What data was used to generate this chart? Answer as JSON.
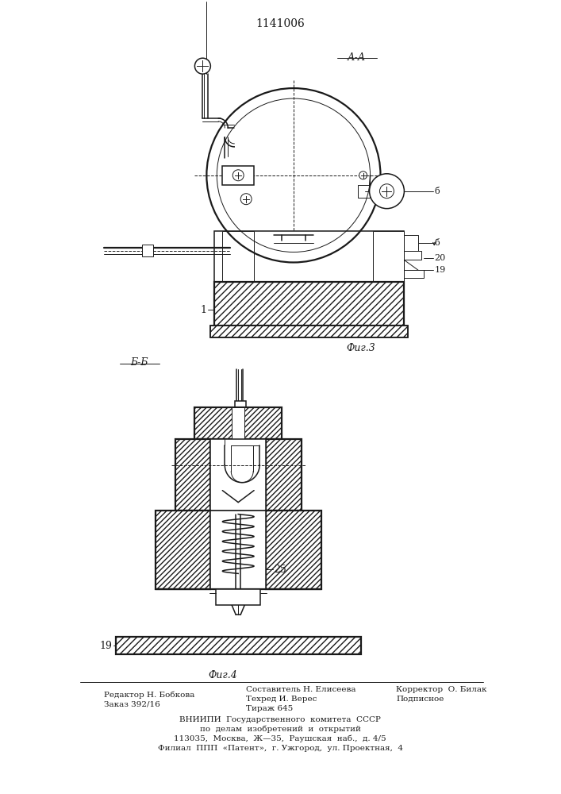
{
  "title": "1141006",
  "fig3_label": "А-А",
  "fig3_caption": "Фиг.3",
  "fig4_caption": "Фиг.4",
  "section_label": "Б-Б",
  "label_1": "1",
  "label_6a": "б",
  "label_6b": "б",
  "label_19a": "19",
  "label_19b": "19",
  "label_20": "20",
  "label_25": "25",
  "bg_color": "#ffffff",
  "line_color": "#1a1a1a",
  "fig_width": 7.07,
  "fig_height": 10.0
}
